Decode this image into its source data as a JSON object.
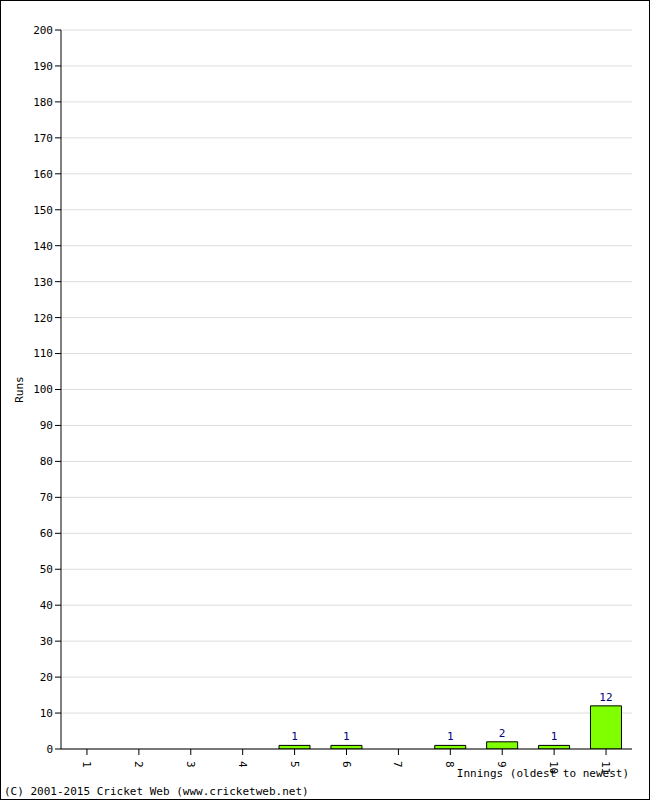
{
  "chart_data": {
    "type": "bar",
    "y_label": "Runs",
    "x_label": "Innings (oldest to newest)",
    "annotations": [
      "(C) 2001-2015 Cricket Web (www.cricketweb.net)"
    ],
    "categories": [
      "1",
      "2",
      "3",
      "4",
      "5",
      "6",
      "7",
      "8",
      "9",
      "10",
      "11"
    ],
    "values": [
      0,
      0,
      0,
      0,
      1,
      1,
      0,
      1,
      2,
      1,
      12
    ],
    "color": "#80ff00",
    "ylim": [
      0,
      200
    ],
    "yticks": [
      0,
      10,
      20,
      30,
      40,
      50,
      60,
      70,
      80,
      90,
      100,
      110,
      120,
      130,
      140,
      150,
      160,
      170,
      180,
      190,
      200
    ],
    "grid": true,
    "data_labels": true
  }
}
